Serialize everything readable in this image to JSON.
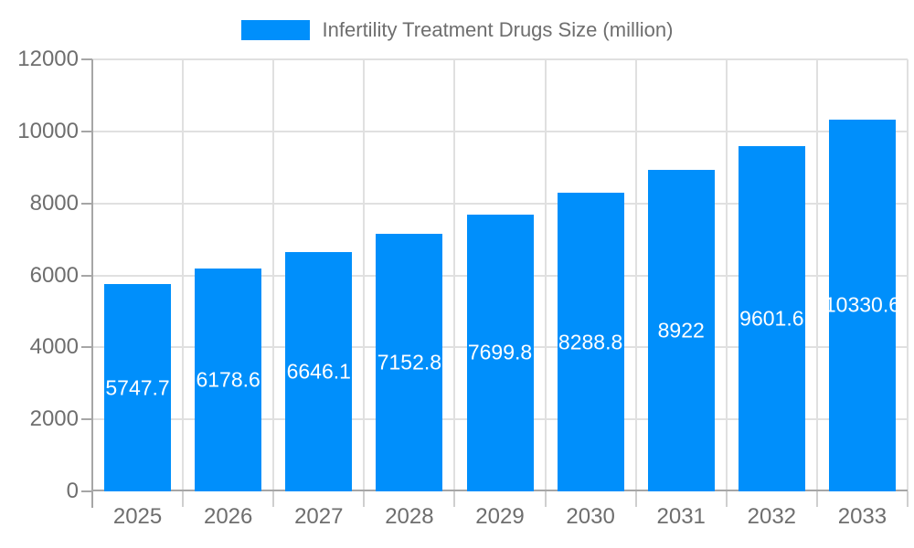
{
  "chart_data": {
    "type": "bar",
    "title": "Infertility Treatment Drugs Size (million)",
    "categories": [
      "2025",
      "2026",
      "2027",
      "2028",
      "2029",
      "2030",
      "2031",
      "2032",
      "2033"
    ],
    "series": [
      {
        "name": "Infertility Treatment Drugs Size (million)",
        "values": [
          5747.7,
          6178.6,
          6646.1,
          7152.8,
          7699.8,
          8288.8,
          8922,
          9601.6,
          10330.6
        ],
        "data_labels": [
          "5747.7",
          "6178.6",
          "6646.1",
          "7152.8",
          "7699.8",
          "8288.8",
          "8922",
          "9601.6",
          "10330.6"
        ]
      }
    ],
    "xlabel": "",
    "ylabel": "",
    "ylim": [
      0,
      12000
    ],
    "yticks": [
      0,
      2000,
      4000,
      6000,
      8000,
      10000,
      12000
    ],
    "grid": true,
    "legend_position": "top",
    "colors": {
      "bar": "#008FFB",
      "grid": "#e0e0e0",
      "axis": "#a6a6a6",
      "tick": "#cfcfcf",
      "axis_text": "#6e6e6e",
      "data_label_text": "#ffffff"
    }
  }
}
